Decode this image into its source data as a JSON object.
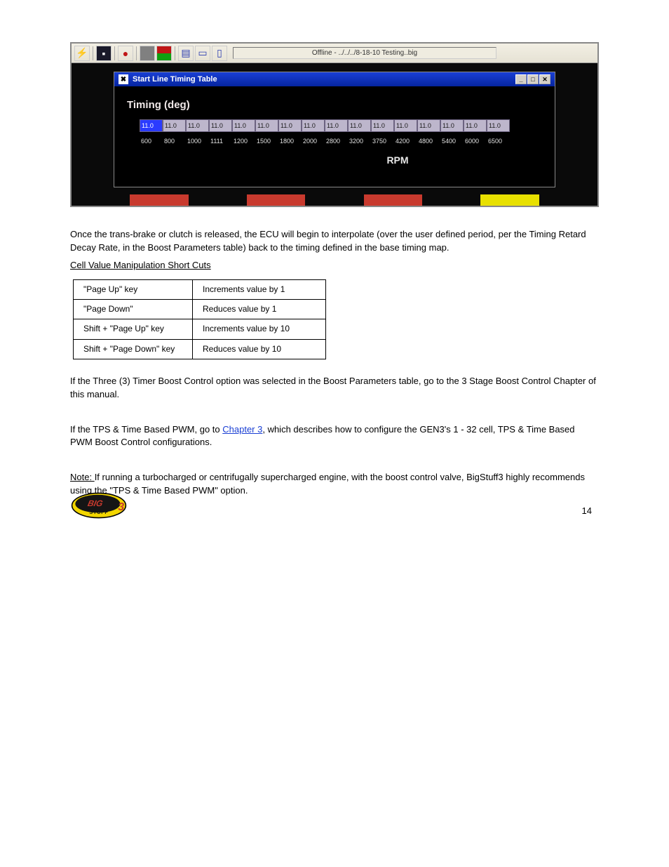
{
  "screenshot": {
    "toolbar_status": "Offline - ../../../8-18-10 Testing..big",
    "window": {
      "title": "Start Line Timing Table",
      "timing_label": "Timing (deg)",
      "rpm_label": "RPM",
      "values": [
        "11.0",
        "11.0",
        "11.0",
        "11.0",
        "11.0",
        "11.0",
        "11.0",
        "11.0",
        "11.0",
        "11.0",
        "11.0",
        "11.0",
        "11.0",
        "11.0",
        "11.0",
        "11.0"
      ],
      "rpm": [
        "600",
        "800",
        "1000",
        "1111",
        "1200",
        "1500",
        "1800",
        "2000",
        "2800",
        "3200",
        "3750",
        "4200",
        "4800",
        "5400",
        "6000",
        "6500"
      ]
    },
    "bottom_strip_colors": [
      "#0a0a0a",
      "#c83a2e",
      "#0a0a0a",
      "#c83a2e",
      "#0a0a0a",
      "#c83a2e",
      "#0a0a0a",
      "#e8e000",
      "#0a0a0a"
    ]
  },
  "text": {
    "para1": "Once the trans-brake or clutch is released, the ECU will begin to interpolate (over the user defined period, per the Timing Retard Decay Rate, in the Boost Parameters table) back to the timing defined in the base timing map.",
    "heading1": "Cell Value Manipulation Short Cuts",
    "kb_rows": [
      [
        "\"Page Up\" key",
        "Increments value by 1"
      ],
      [
        "\"Page Down\"",
        "Reduces value by 1"
      ],
      [
        "Shift + \"Page Up\" key",
        "Increments value by 10"
      ],
      [
        "Shift + \"Page Down\" key",
        "Reduces value by 10"
      ]
    ],
    "para2_a": "If the Three (3) Timer Boost Control option was selected in the Boost Parameters table, go to the 3 Stage Boost Control Chapter of this manual.",
    "para2_b": "If the TPS & Time Based PWM, go to ",
    "para2_link": "Chapter 3",
    "para2_c": ", which describes how to configure the GEN3's 1 - 32 cell, TPS & Time Based PWM Boost Control configurations.",
    "note_label": "Note: ",
    "para3": "If running a turbocharged or centrifugally supercharged engine, with the boost control valve, BigStuff3 highly recommends using the \"TPS & Time Based PWM\" option."
  },
  "page_number": "14"
}
